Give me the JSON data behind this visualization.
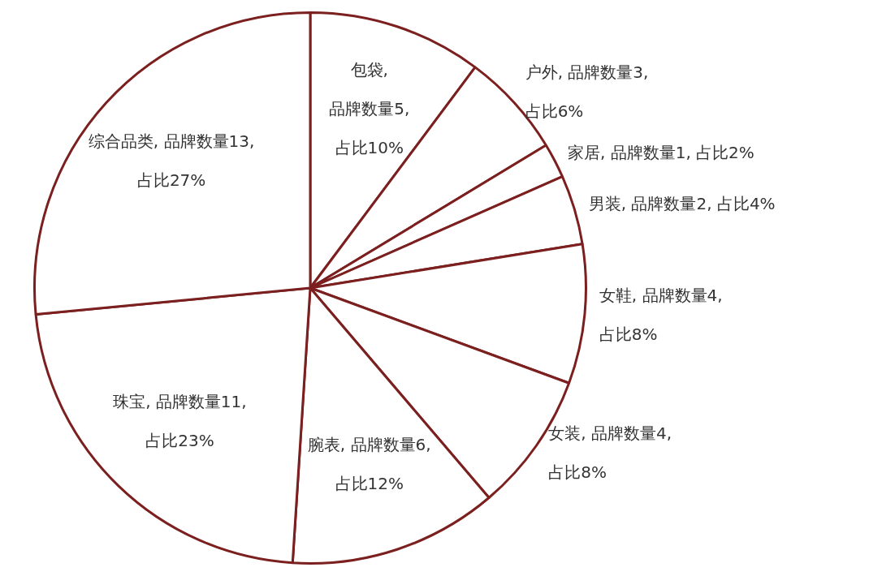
{
  "chart_data": {
    "type": "pie",
    "categories": [
      "包袋",
      "户外",
      "家居",
      "男装",
      "女鞋",
      "女装",
      "腕表",
      "珠宝",
      "综合品类"
    ],
    "values": [
      5,
      3,
      1,
      2,
      4,
      4,
      6,
      11,
      13
    ],
    "colors": [
      "#ffffff",
      "#ffffff",
      "#ffffff",
      "#ffffff",
      "#ffffff",
      "#ffffff",
      "#ffffff",
      "#ffffff",
      "#ffffff"
    ],
    "value_labels": [
      ", 品牌数量5, 占比10%",
      ", 品牌数量3, 占比6%",
      ", 品牌数量1, 占比2%",
      ", 品牌数量2, 占比4%",
      ", 品牌数量4, 占比8%",
      ", 品牌数量4, 占比8%",
      ", 品牌数量6, 占比12%",
      ", 品牌数量11, 占比23%",
      ", 品牌数量13, 占比27%"
    ],
    "legend": false
  }
}
